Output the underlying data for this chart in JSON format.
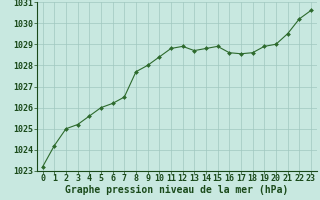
{
  "x": [
    0,
    1,
    2,
    3,
    4,
    5,
    6,
    7,
    8,
    9,
    10,
    11,
    12,
    13,
    14,
    15,
    16,
    17,
    18,
    19,
    20,
    21,
    22,
    23
  ],
  "y": [
    1023.2,
    1024.2,
    1025.0,
    1025.2,
    1025.6,
    1026.0,
    1026.2,
    1026.5,
    1027.7,
    1028.0,
    1028.4,
    1028.8,
    1028.9,
    1028.7,
    1028.8,
    1028.9,
    1028.6,
    1028.55,
    1028.6,
    1028.9,
    1029.0,
    1029.5,
    1030.2,
    1030.6
  ],
  "line_color": "#2d6a2d",
  "marker_color": "#2d6a2d",
  "bg_color": "#c8e8e0",
  "grid_color": "#a0c8c0",
  "xlabel": "Graphe pression niveau de la mer (hPa)",
  "xlabel_color": "#1a4a1a",
  "xlabel_fontsize": 7,
  "tick_fontsize": 6,
  "ylim_min": 1023,
  "ylim_max": 1031,
  "xlim_min": 0,
  "xlim_max": 23,
  "yticks": [
    1023,
    1024,
    1025,
    1026,
    1027,
    1028,
    1029,
    1030,
    1031
  ],
  "xticks": [
    0,
    1,
    2,
    3,
    4,
    5,
    6,
    7,
    8,
    9,
    10,
    11,
    12,
    13,
    14,
    15,
    16,
    17,
    18,
    19,
    20,
    21,
    22,
    23
  ]
}
